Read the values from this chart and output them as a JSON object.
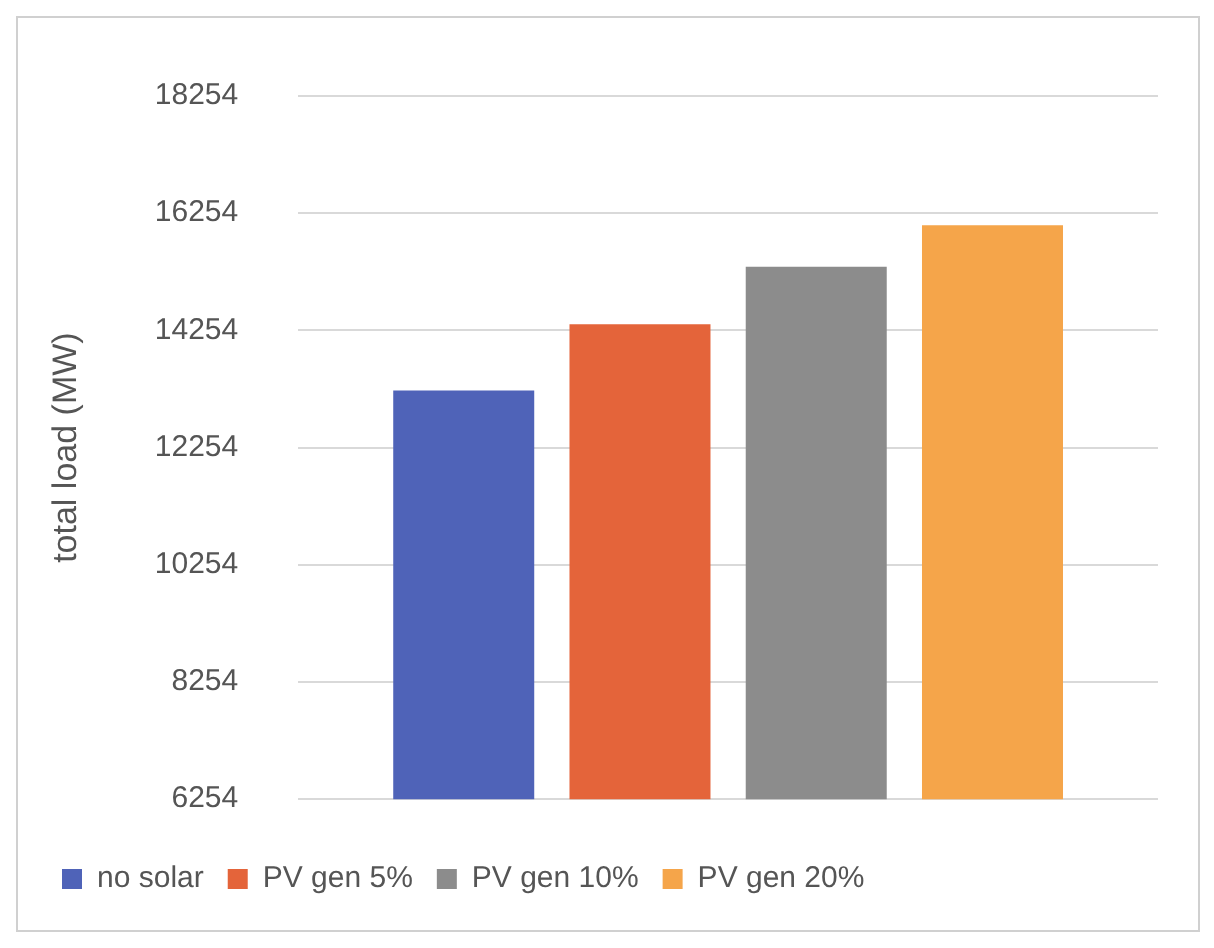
{
  "chart_data": {
    "type": "bar",
    "ylabel": "total load (MW)",
    "categories": [
      null
    ],
    "series": [
      {
        "name": "no solar",
        "color": "#4f63b8",
        "values": [
          13230
        ]
      },
      {
        "name": "PV gen 5%",
        "color": "#e4643a",
        "values": [
          14360
        ]
      },
      {
        "name": "PV gen 10%",
        "color": "#8c8c8c",
        "values": [
          15340
        ]
      },
      {
        "name": "PV gen 20%",
        "color": "#f5a54a",
        "values": [
          16050
        ]
      }
    ],
    "ylim": [
      6254,
      18254
    ],
    "yticks": [
      6254,
      8254,
      10254,
      12254,
      14254,
      16254,
      18254
    ],
    "grid": "y",
    "legend": "bottom"
  }
}
